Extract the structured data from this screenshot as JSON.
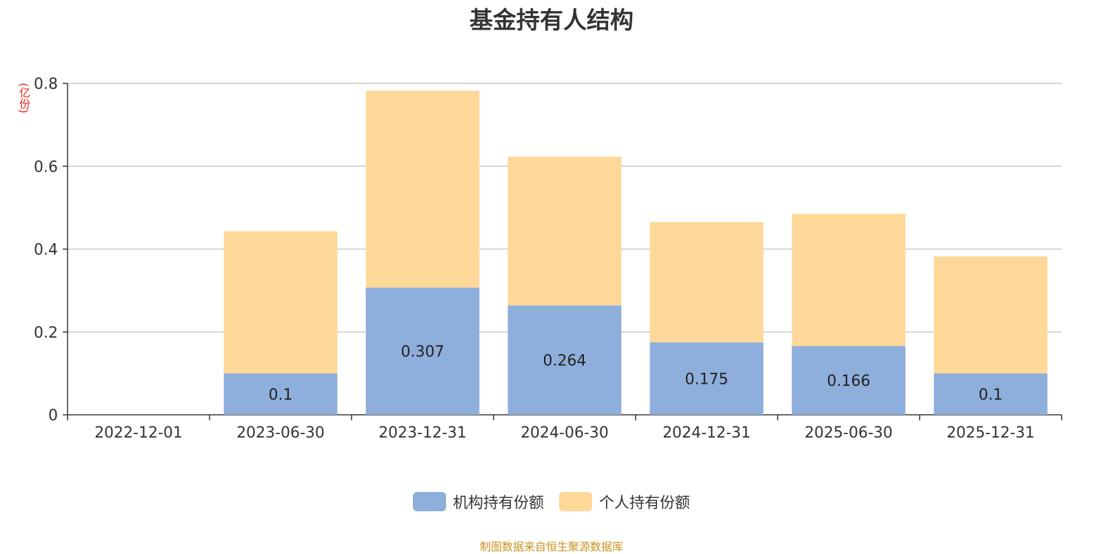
{
  "title": "基金持有人结构",
  "unit": "(亿份)",
  "source": "制图数据来自恒生聚源数据库",
  "colors": {
    "institutional": "#8eaedb",
    "individual": "#fdd898",
    "grid": "#c8c8c8",
    "axis": "#333333"
  },
  "chart_data": {
    "type": "bar",
    "stacked": true,
    "categories": [
      "2022-12-01",
      "2023-06-30",
      "2023-12-31",
      "2024-06-30",
      "2024-12-31",
      "2025-06-30",
      "2025-12-31"
    ],
    "series": [
      {
        "name": "机构持有份额",
        "values": [
          0,
          0.1,
          0.307,
          0.264,
          0.175,
          0.166,
          0.1
        ],
        "labels": [
          "",
          "0.1",
          "0.307",
          "0.264",
          "0.175",
          "0.166",
          "0.1"
        ]
      },
      {
        "name": "个人持有份额",
        "values": [
          0,
          0.343,
          0.475,
          0.359,
          0.29,
          0.319,
          0.282
        ]
      }
    ],
    "ylim": [
      0,
      0.8
    ],
    "yticks": [
      "0",
      "0.2",
      "0.4",
      "0.6",
      "0.8"
    ],
    "grid": true,
    "legend": "bottom-center"
  }
}
